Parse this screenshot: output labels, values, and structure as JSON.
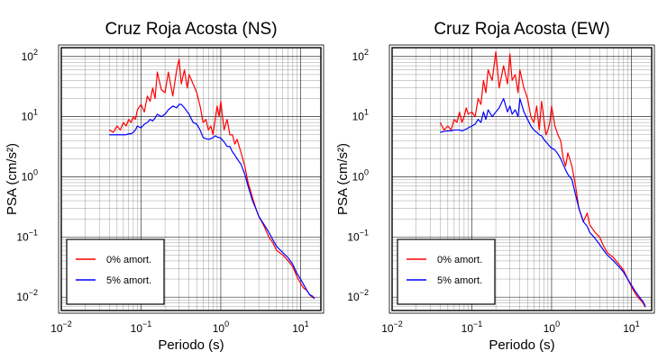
{
  "colors": {
    "series_0": "#ff0000",
    "series_5": "#0000ff",
    "grid": "#000000"
  },
  "chart_data": [
    {
      "type": "line",
      "title": "Cruz Roja Acosta (NS)",
      "xlabel": "Periodo (s)",
      "ylabel": "PSA (cm/s²)",
      "xscale": "log",
      "yscale": "log",
      "xlim": [
        0.01,
        18
      ],
      "ylim": [
        0.006,
        140
      ],
      "grid": true,
      "legend": "bottom-left",
      "xticks": [
        {
          "v": 0.01,
          "b": "10",
          "e": "−2"
        },
        {
          "v": 0.1,
          "b": "10",
          "e": "−1"
        },
        {
          "v": 1,
          "b": "10",
          "e": "0"
        },
        {
          "v": 10,
          "b": "10",
          "e": "1"
        }
      ],
      "yticks": [
        {
          "v": 0.01,
          "b": "10",
          "e": "−2"
        },
        {
          "v": 0.1,
          "b": "10",
          "e": "−1"
        },
        {
          "v": 1,
          "b": "10",
          "e": "0"
        },
        {
          "v": 10,
          "b": "10",
          "e": "1"
        },
        {
          "v": 100,
          "b": "10",
          "e": "2"
        }
      ],
      "series": [
        {
          "name": "0% amort.",
          "color": "#ff0000",
          "x": [
            0.04,
            0.045,
            0.05,
            0.055,
            0.06,
            0.065,
            0.07,
            0.075,
            0.08,
            0.085,
            0.09,
            0.1,
            0.11,
            0.12,
            0.13,
            0.14,
            0.15,
            0.16,
            0.18,
            0.2,
            0.22,
            0.25,
            0.28,
            0.3,
            0.32,
            0.35,
            0.38,
            0.4,
            0.45,
            0.5,
            0.55,
            0.6,
            0.65,
            0.7,
            0.75,
            0.8,
            0.85,
            0.9,
            0.95,
            1.0,
            1.1,
            1.2,
            1.3,
            1.4,
            1.5,
            1.6,
            1.8,
            2.0,
            2.2,
            2.5,
            2.8,
            3.0,
            3.5,
            4.0,
            4.5,
            5.0,
            6.0,
            7.0,
            8.0,
            9.0,
            10.0,
            11.0,
            12.0,
            13.0,
            14.0,
            15.0
          ],
          "y": [
            6,
            5.5,
            7,
            6,
            8,
            7,
            9,
            8,
            10,
            9,
            13,
            16,
            12,
            22,
            18,
            30,
            20,
            55,
            28,
            25,
            55,
            22,
            60,
            90,
            35,
            60,
            30,
            50,
            35,
            25,
            15,
            8,
            9,
            6,
            7,
            5,
            9,
            15,
            10,
            18,
            6,
            9,
            5,
            5,
            3.5,
            4.2,
            2.5,
            1.5,
            0.8,
            0.45,
            0.28,
            0.22,
            0.15,
            0.1,
            0.08,
            0.06,
            0.05,
            0.04,
            0.032,
            0.022,
            0.017,
            0.014,
            0.013,
            0.011,
            0.01,
            0.0095
          ]
        },
        {
          "name": "5% amort.",
          "color": "#0000ff",
          "x": [
            0.04,
            0.045,
            0.05,
            0.055,
            0.06,
            0.065,
            0.07,
            0.075,
            0.08,
            0.085,
            0.09,
            0.1,
            0.11,
            0.12,
            0.13,
            0.14,
            0.15,
            0.16,
            0.18,
            0.2,
            0.22,
            0.25,
            0.28,
            0.3,
            0.32,
            0.35,
            0.38,
            0.4,
            0.45,
            0.5,
            0.55,
            0.6,
            0.65,
            0.7,
            0.75,
            0.8,
            0.85,
            0.9,
            0.95,
            1.0,
            1.1,
            1.2,
            1.3,
            1.4,
            1.5,
            1.6,
            1.8,
            2.0,
            2.2,
            2.5,
            2.8,
            3.0,
            3.5,
            4.0,
            4.5,
            5.0,
            6.0,
            7.0,
            8.0,
            9.0,
            10.0,
            11.0,
            12.0,
            13.0,
            14.0,
            15.0
          ],
          "y": [
            5,
            5,
            5,
            5,
            5,
            5,
            5.2,
            5.2,
            5.5,
            6,
            7,
            6.5,
            7.5,
            8,
            9,
            8.5,
            9.5,
            11,
            10,
            11,
            13,
            15,
            14,
            16,
            16,
            14,
            12,
            11,
            8,
            7.5,
            6,
            4.5,
            4.3,
            4.2,
            4.3,
            4.5,
            4.8,
            4.6,
            4.5,
            4.4,
            3.8,
            3.2,
            3.2,
            2.6,
            2.3,
            2.0,
            1.6,
            1.1,
            0.7,
            0.4,
            0.28,
            0.22,
            0.16,
            0.12,
            0.09,
            0.07,
            0.055,
            0.045,
            0.035,
            0.025,
            0.02,
            0.016,
            0.013,
            0.011,
            0.0105,
            0.0095
          ]
        }
      ]
    },
    {
      "type": "line",
      "title": "Cruz Roja Acosta (EW)",
      "xlabel": "Periodo (s)",
      "ylabel": "PSA (cm/s²)",
      "xscale": "log",
      "yscale": "log",
      "xlim": [
        0.01,
        18
      ],
      "ylim": [
        0.006,
        140
      ],
      "grid": true,
      "legend": "bottom-left",
      "xticks": [
        {
          "v": 0.01,
          "b": "10",
          "e": "−2"
        },
        {
          "v": 0.1,
          "b": "10",
          "e": "−1"
        },
        {
          "v": 1,
          "b": "10",
          "e": "0"
        },
        {
          "v": 10,
          "b": "10",
          "e": "1"
        }
      ],
      "yticks": [
        {
          "v": 0.01,
          "b": "10",
          "e": "−2"
        },
        {
          "v": 0.1,
          "b": "10",
          "e": "−1"
        },
        {
          "v": 1,
          "b": "10",
          "e": "0"
        },
        {
          "v": 10,
          "b": "10",
          "e": "1"
        },
        {
          "v": 100,
          "b": "10",
          "e": "2"
        }
      ],
      "series": [
        {
          "name": "0% amort.",
          "color": "#ff0000",
          "x": [
            0.04,
            0.045,
            0.05,
            0.055,
            0.06,
            0.065,
            0.07,
            0.075,
            0.08,
            0.085,
            0.09,
            0.1,
            0.11,
            0.12,
            0.13,
            0.14,
            0.15,
            0.16,
            0.18,
            0.2,
            0.22,
            0.25,
            0.28,
            0.3,
            0.32,
            0.35,
            0.38,
            0.4,
            0.45,
            0.5,
            0.55,
            0.6,
            0.65,
            0.7,
            0.75,
            0.8,
            0.85,
            0.9,
            0.95,
            1.0,
            1.1,
            1.2,
            1.3,
            1.4,
            1.5,
            1.6,
            1.8,
            2.0,
            2.2,
            2.5,
            2.8,
            3.0,
            3.5,
            4.0,
            4.5,
            5.0,
            6.0,
            7.0,
            8.0,
            9.0,
            10.0,
            11.0,
            12.0,
            13.0,
            14.0,
            15.0
          ],
          "y": [
            8,
            6,
            7,
            6,
            9,
            8,
            12,
            8,
            10,
            14,
            11,
            12,
            10,
            20,
            16,
            40,
            25,
            60,
            40,
            120,
            30,
            70,
            35,
            110,
            40,
            50,
            25,
            60,
            30,
            20,
            10,
            8,
            15,
            6,
            18,
            9,
            5,
            6,
            8,
            15,
            7,
            5,
            4,
            2,
            1.5,
            2.5,
            1.5,
            0.7,
            0.3,
            0.18,
            0.25,
            0.16,
            0.12,
            0.1,
            0.07,
            0.055,
            0.045,
            0.035,
            0.028,
            0.02,
            0.015,
            0.012,
            0.01,
            0.009,
            0.008,
            0.0068
          ]
        },
        {
          "name": "5% amort.",
          "color": "#0000ff",
          "x": [
            0.04,
            0.045,
            0.05,
            0.055,
            0.06,
            0.065,
            0.07,
            0.075,
            0.08,
            0.085,
            0.09,
            0.1,
            0.11,
            0.12,
            0.13,
            0.14,
            0.15,
            0.16,
            0.18,
            0.2,
            0.22,
            0.25,
            0.28,
            0.3,
            0.32,
            0.35,
            0.38,
            0.4,
            0.45,
            0.5,
            0.55,
            0.6,
            0.65,
            0.7,
            0.75,
            0.8,
            0.85,
            0.9,
            0.95,
            1.0,
            1.1,
            1.2,
            1.3,
            1.4,
            1.5,
            1.6,
            1.8,
            2.0,
            2.2,
            2.5,
            2.8,
            3.0,
            3.5,
            4.0,
            4.5,
            5.0,
            6.0,
            7.0,
            8.0,
            9.0,
            10.0,
            11.0,
            12.0,
            13.0,
            14.0,
            15.0
          ],
          "y": [
            5.5,
            5.7,
            5.8,
            5.8,
            6,
            6,
            6,
            5.8,
            6,
            6.2,
            6.5,
            7,
            7.5,
            9,
            8,
            12,
            9,
            13,
            10,
            12,
            14,
            20,
            12,
            15,
            11,
            13,
            10,
            20,
            12,
            9,
            7,
            6,
            5.5,
            5,
            4.8,
            4.2,
            3.8,
            3.5,
            3.2,
            3.0,
            2.8,
            2.4,
            2.0,
            1.6,
            1.3,
            1.1,
            0.9,
            0.5,
            0.3,
            0.18,
            0.15,
            0.12,
            0.095,
            0.075,
            0.06,
            0.05,
            0.04,
            0.032,
            0.026,
            0.02,
            0.016,
            0.013,
            0.011,
            0.0095,
            0.0085,
            0.007
          ]
        }
      ]
    }
  ]
}
